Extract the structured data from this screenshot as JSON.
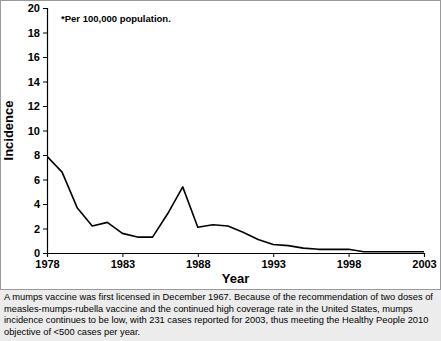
{
  "chart_data": {
    "type": "line",
    "x_label": "Year",
    "y_label": "Incidence",
    "annotations": [
      "*Per 100,000 population."
    ],
    "caption": "A mumps vaccine was first licensed in December 1967.  Because of the recommendation of two doses of measles-mumps-rubella vaccine and the continued high coverage rate in the United States, mumps incidence continues to be low, with 231 cases reported for 2003, thus meeting the Healthy People 2010 objective of <500 cases per year.",
    "x": [
      1978,
      1979,
      1980,
      1981,
      1982,
      1983,
      1984,
      1985,
      1986,
      1987,
      1988,
      1989,
      1990,
      1991,
      1992,
      1993,
      1994,
      1995,
      1996,
      1997,
      1998,
      1999,
      2000,
      2001,
      2002,
      2003
    ],
    "values": [
      7.9,
      6.6,
      3.7,
      2.2,
      2.5,
      1.6,
      1.3,
      1.3,
      3.2,
      5.4,
      2.1,
      2.3,
      2.2,
      1.7,
      1.1,
      0.7,
      0.6,
      0.4,
      0.3,
      0.3,
      0.3,
      0.1,
      0.1,
      0.1,
      0.1,
      0.1
    ],
    "color": "#000000",
    "xlim": [
      1978,
      2003
    ],
    "xticks": [
      1978,
      1983,
      1988,
      1993,
      1998,
      2003
    ],
    "ylim": [
      0,
      20
    ],
    "yticks": [
      0,
      2,
      4,
      6,
      8,
      10,
      12,
      14,
      16,
      18,
      20
    ],
    "grid": false
  }
}
